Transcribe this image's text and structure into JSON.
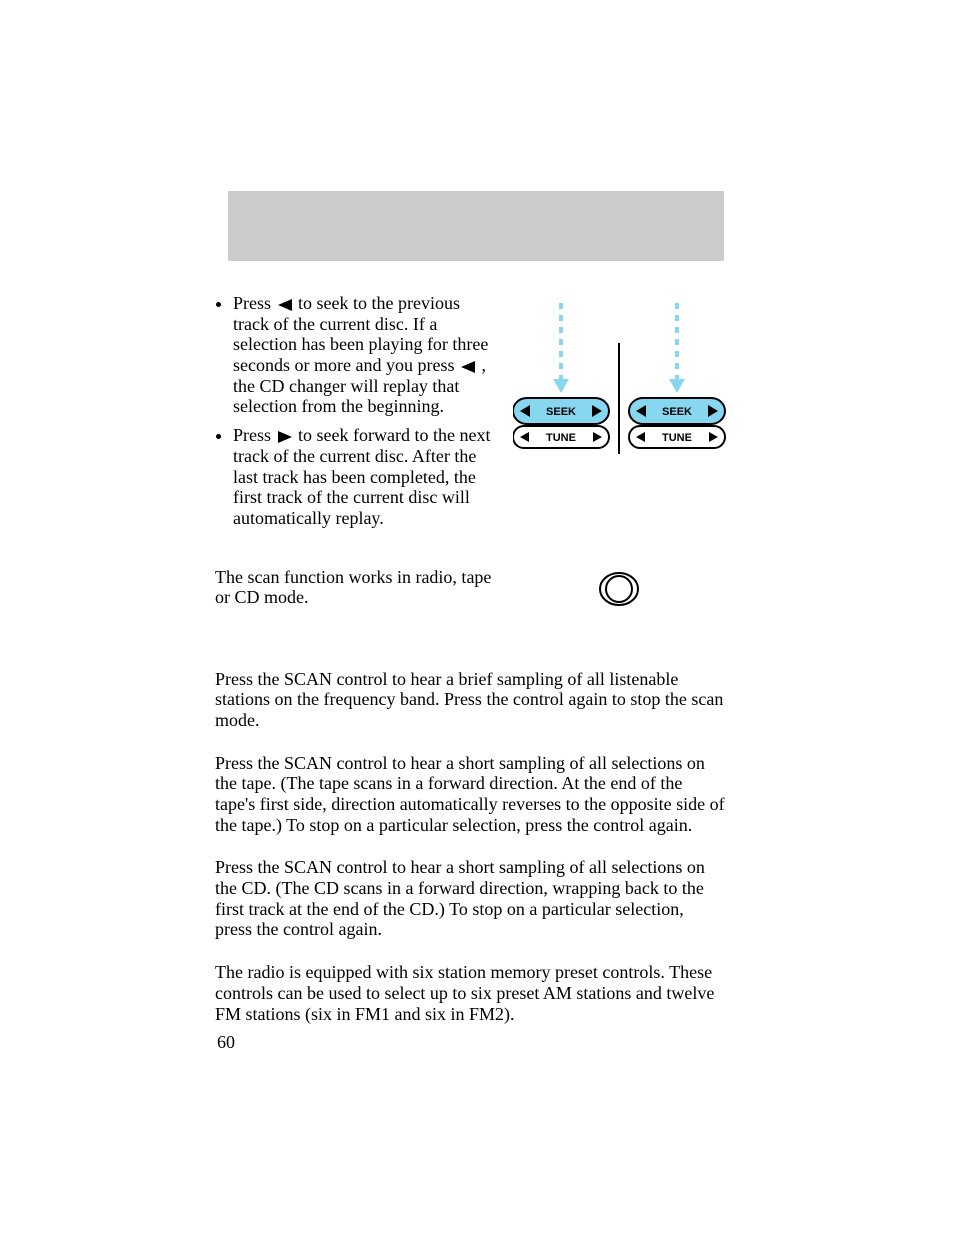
{
  "header": {
    "bg_color": "#cccccc"
  },
  "bullets": {
    "b1_a": "Press",
    "b1_b": "to seek to the previous track of the current disc. If a selection has been playing for three seconds or more and you press",
    "b1_c": ", the CD changer will replay that selection from the beginning.",
    "b2_a": "Press",
    "b2_b": "to seek forward to the next track of the current disc. After the last track has been completed, the first track of the current disc will automatically replay."
  },
  "seek_tune_fig": {
    "accent_color": "#87d7f0",
    "stroke_color": "#000000",
    "arrow_fill": "#000000",
    "label_seek": "SEEK",
    "label_tune": "TUNE",
    "label_font_size": 11,
    "label_font_weight": "bold",
    "button": {
      "width": 96,
      "seek_height": 26,
      "tune_height": 22,
      "corner_radius": 14
    },
    "arrow_dash": "6,6",
    "arrow_len": 90,
    "gap": 20
  },
  "scan_intro": "The scan function works in radio, tape or CD mode.",
  "scan_button_fig": {
    "outer_rx": 20,
    "outer_w": 38,
    "outer_h": 32,
    "inner_rx": 13,
    "stroke_color": "#000000"
  },
  "paras": {
    "p1": "Press the SCAN control to hear a brief sampling of all listenable stations on the frequency band. Press the control again to stop the scan mode.",
    "p2": "Press the SCAN control to hear a short sampling of all selections on the tape. (The tape scans in a forward direction. At the end of the tape's first side, direction automatically reverses to the opposite side of the tape.) To stop on a particular selection, press the control again.",
    "p3": "Press the SCAN control to hear a short sampling of all selections on the CD. (The CD scans in a forward direction, wrapping back to the first track at the end of the CD.) To stop on a particular selection, press the control again.",
    "p4": "The radio is equipped with six station memory preset controls. These controls can be used to select up to six preset AM stations and twelve FM stations (six in FM1 and six in FM2)."
  },
  "page_number": "60",
  "inline_triangle": {
    "fill": "#000000",
    "size": 14
  }
}
